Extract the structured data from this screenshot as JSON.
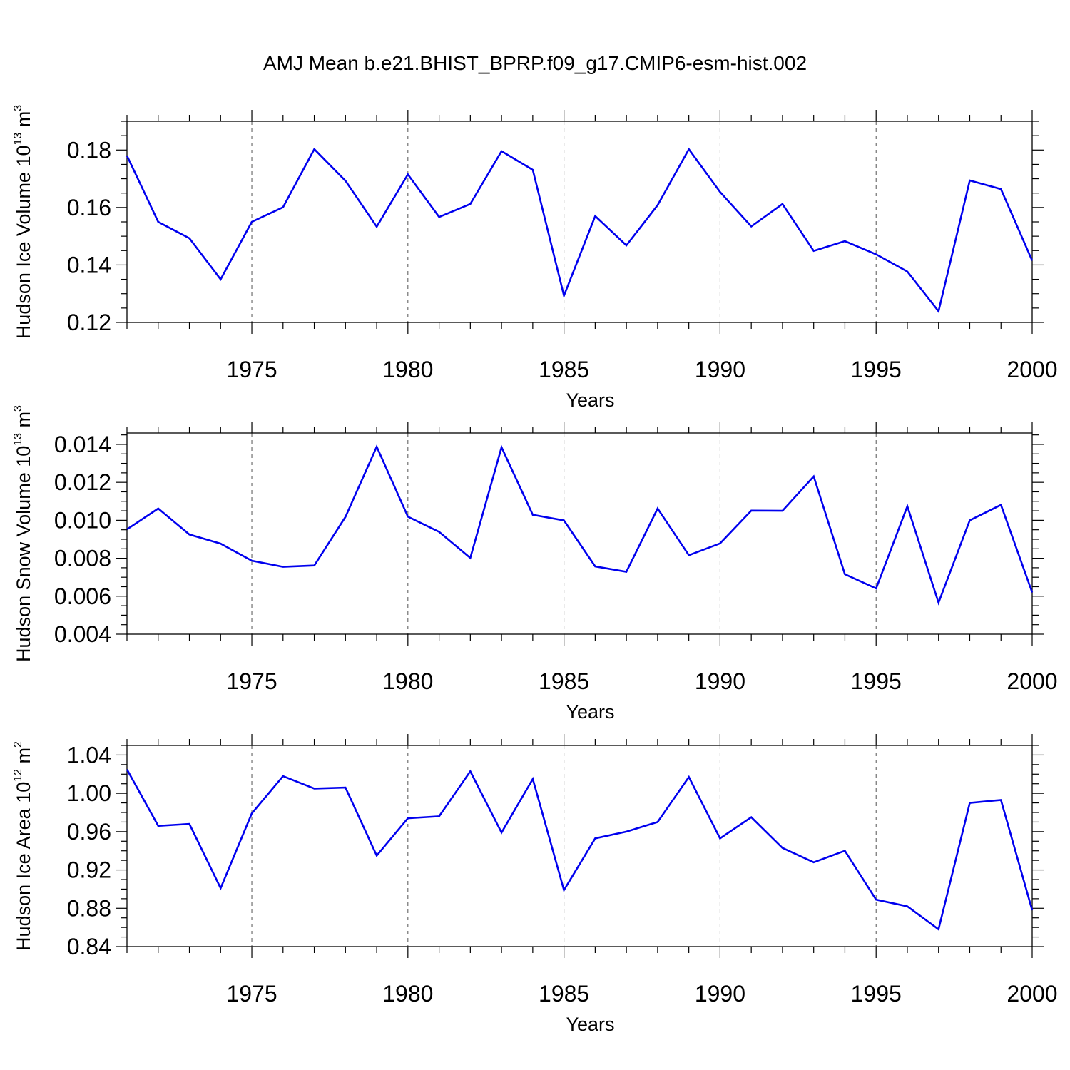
{
  "title": "AMJ Mean b.e21.BHIST_BPRP.f09_g17.CMIP6-esm-hist.002",
  "colors": {
    "line": "#0000ee",
    "frame": "#000000",
    "grid": "#555555"
  },
  "chart_data": [
    {
      "type": "line",
      "xlabel": "Years",
      "ylabel": {
        "main": "Hudson Ice Volume 10",
        "exp": "13",
        "unit": " m",
        "unit_exp": "3"
      },
      "xlim": [
        1971,
        2000
      ],
      "ylim": [
        0.12,
        0.19
      ],
      "xticks": [
        "1975",
        "1980",
        "1985",
        "1990",
        "1995",
        "2000"
      ],
      "xtick_values": [
        1975,
        1980,
        1985,
        1990,
        1995,
        2000
      ],
      "yticks": [
        "0.12",
        "0.14",
        "0.16",
        "0.18"
      ],
      "ytick_values": [
        0.12,
        0.14,
        0.16,
        0.18
      ],
      "yminor_step": 0.005,
      "grid_x": "dashed vertical lines at major x ticks",
      "x": [
        1971,
        1972,
        1973,
        1974,
        1975,
        1976,
        1977,
        1978,
        1979,
        1980,
        1981,
        1982,
        1983,
        1984,
        1985,
        1986,
        1987,
        1988,
        1989,
        1990,
        1991,
        1992,
        1993,
        1994,
        1995,
        1996,
        1997,
        1998,
        1999,
        2000
      ],
      "y": [
        0.178,
        0.155,
        0.1493,
        0.135,
        0.155,
        0.1601,
        0.1803,
        0.1693,
        0.1533,
        0.1715,
        0.1567,
        0.1612,
        0.1796,
        0.1731,
        0.1293,
        0.157,
        0.1468,
        0.1608,
        0.1803,
        0.1654,
        0.1534,
        0.1612,
        0.1449,
        0.1483,
        0.1437,
        0.1377,
        0.1239,
        0.1694,
        0.1664,
        0.1415
      ]
    },
    {
      "type": "line",
      "xlabel": "Years",
      "ylabel": {
        "main": "Hudson Snow Volume 10",
        "exp": "13",
        "unit": " m",
        "unit_exp": "3"
      },
      "xlim": [
        1971,
        2000
      ],
      "ylim": [
        0.004,
        0.0146
      ],
      "xticks": [
        "1975",
        "1980",
        "1985",
        "1990",
        "1995",
        "2000"
      ],
      "xtick_values": [
        1975,
        1980,
        1985,
        1990,
        1995,
        2000
      ],
      "yticks": [
        "0.004",
        "0.006",
        "0.008",
        "0.010",
        "0.012",
        "0.014"
      ],
      "ytick_values": [
        0.004,
        0.006,
        0.008,
        0.01,
        0.012,
        0.014
      ],
      "yminor_step": 0.0005,
      "grid_x": "dashed vertical lines at major x ticks",
      "x": [
        1971,
        1972,
        1973,
        1974,
        1975,
        1976,
        1977,
        1978,
        1979,
        1980,
        1981,
        1982,
        1983,
        1984,
        1985,
        1986,
        1987,
        1988,
        1989,
        1990,
        1991,
        1992,
        1993,
        1994,
        1995,
        1996,
        1997,
        1998,
        1999,
        2000
      ],
      "y": [
        0.00952,
        0.01062,
        0.00925,
        0.00877,
        0.00787,
        0.00755,
        0.00762,
        0.01018,
        0.01388,
        0.01019,
        0.00939,
        0.00802,
        0.01385,
        0.01029,
        0.00999,
        0.00757,
        0.00729,
        0.01062,
        0.00816,
        0.00878,
        0.01051,
        0.0105,
        0.01231,
        0.00716,
        0.00641,
        0.01074,
        0.00566,
        0.01,
        0.01081,
        0.0062
      ]
    },
    {
      "type": "line",
      "xlabel": "Years",
      "ylabel": {
        "main": "Hudson Ice Area 10",
        "exp": "12",
        "unit": " m",
        "unit_exp": "2"
      },
      "xlim": [
        1971,
        2000
      ],
      "ylim": [
        0.84,
        1.05
      ],
      "xticks": [
        "1975",
        "1980",
        "1985",
        "1990",
        "1995",
        "2000"
      ],
      "xtick_values": [
        1975,
        1980,
        1985,
        1990,
        1995,
        2000
      ],
      "yticks": [
        "0.84",
        "0.88",
        "0.92",
        "0.96",
        "1.00",
        "1.04"
      ],
      "ytick_values": [
        0.84,
        0.88,
        0.92,
        0.96,
        1.0,
        1.04
      ],
      "yminor_step": 0.01,
      "grid_x": "dashed vertical lines at major x ticks",
      "x": [
        1971,
        1972,
        1973,
        1974,
        1975,
        1976,
        1977,
        1978,
        1979,
        1980,
        1981,
        1982,
        1983,
        1984,
        1985,
        1986,
        1987,
        1988,
        1989,
        1990,
        1991,
        1992,
        1993,
        1994,
        1995,
        1996,
        1997,
        1998,
        1999,
        2000
      ],
      "y": [
        1.025,
        0.966,
        0.968,
        0.901,
        0.979,
        1.018,
        1.005,
        1.006,
        0.935,
        0.974,
        0.976,
        1.023,
        0.959,
        1.015,
        0.899,
        0.953,
        0.96,
        0.97,
        1.017,
        0.953,
        0.975,
        0.943,
        0.928,
        0.94,
        0.889,
        0.882,
        0.858,
        0.99,
        0.993,
        0.878
      ]
    }
  ]
}
